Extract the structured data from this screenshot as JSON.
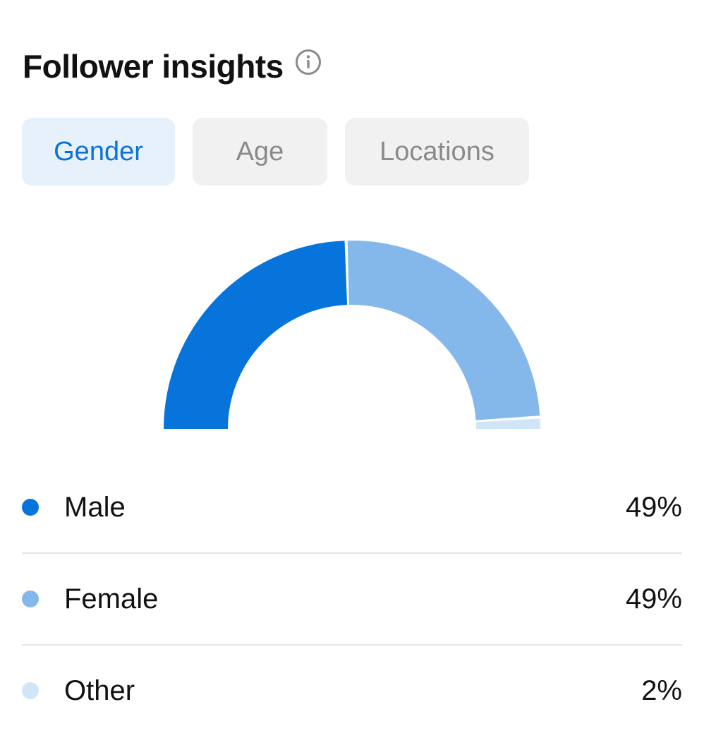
{
  "header": {
    "title": "Follower insights",
    "info_icon": "info-icon"
  },
  "tabs": [
    {
      "label": "Gender",
      "active": true
    },
    {
      "label": "Age",
      "active": false
    },
    {
      "label": "Locations",
      "active": false
    }
  ],
  "colors": {
    "male": "#0774db",
    "female": "#84b8ea",
    "other": "#d1e5f8",
    "accent": "#0b72d6"
  },
  "chart_data": {
    "type": "pie",
    "shape": "half-donut",
    "categories": [
      "Male",
      "Female",
      "Other"
    ],
    "values": [
      49,
      49,
      2
    ],
    "unit": "%"
  },
  "legend": [
    {
      "label": "Male",
      "value": "49%"
    },
    {
      "label": "Female",
      "value": "49%"
    },
    {
      "label": "Other",
      "value": "2%"
    }
  ]
}
